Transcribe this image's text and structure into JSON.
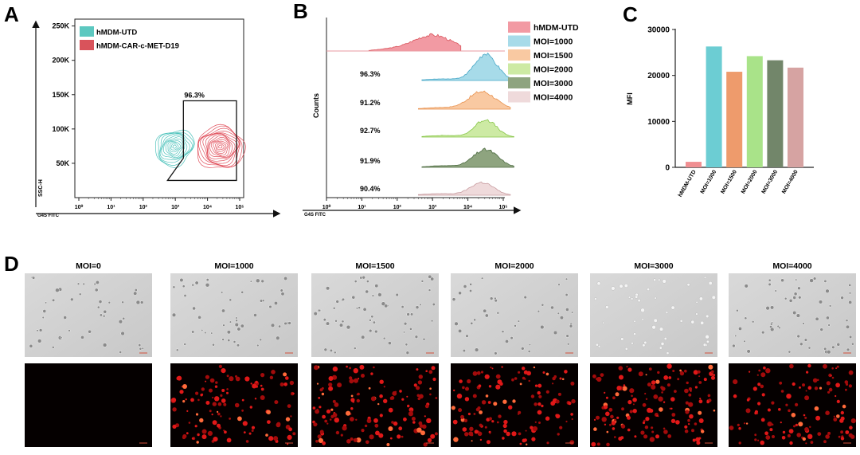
{
  "panel_letters": {
    "a": "A",
    "b": "B",
    "c": "C",
    "d": "D"
  },
  "chart_data": [
    {
      "type": "contour",
      "panel": "A",
      "xlabel": "G4S FITC",
      "ylabel": "SSC-H",
      "x_ticks": [
        "10⁰",
        "10¹",
        "10²",
        "10³",
        "10⁴",
        "10⁵"
      ],
      "y_ticks": [
        "50K",
        "100K",
        "150K",
        "200K",
        "250K"
      ],
      "y_tick_values": [
        50,
        100,
        150,
        200,
        250
      ],
      "ylim": [
        0,
        260
      ],
      "xlim": [
        0,
        5
      ],
      "legend": [
        {
          "label": "hMDM-UTD",
          "color": "#5cc8c0"
        },
        {
          "label": "hMDM-CAR-c-MET-D19",
          "color": "#d9535b"
        }
      ],
      "series": [
        {
          "name": "hMDM-UTD",
          "center_log": 3.0,
          "center_k": 72,
          "color": "#3cbdb5"
        },
        {
          "name": "hMDM-CAR-c-MET-D19",
          "center_log": 4.3,
          "center_k": 72,
          "color": "#de3f4d"
        }
      ],
      "gate": {
        "label": "96.3%",
        "x_log": [
          3.3,
          5.0
        ],
        "y_k": [
          25,
          141
        ]
      }
    },
    {
      "type": "histogram",
      "panel": "B",
      "xlabel": "G4S FITC",
      "ylabel": "Counts",
      "x_ticks": [
        "10⁰",
        "10¹",
        "10²",
        "10³",
        "10⁴",
        "10⁵"
      ],
      "series": [
        {
          "name": "hMDM-UTD",
          "color": "#f29aa3",
          "edge": "#d9535b",
          "peak_log": 3.0,
          "percent": ""
        },
        {
          "name": "MOI=1000",
          "color": "#a7dbe9",
          "edge": "#46a7c7",
          "peak_log": 4.5,
          "percent": "96.3%"
        },
        {
          "name": "MOI=1500",
          "color": "#f9c9a2",
          "edge": "#e8904c",
          "peak_log": 4.4,
          "percent": "91.2%"
        },
        {
          "name": "MOI=2000",
          "color": "#cdeaa4",
          "edge": "#86c545",
          "peak_log": 4.5,
          "percent": "92.7%"
        },
        {
          "name": "MOI=3000",
          "color": "#8ea47f",
          "edge": "#4c6b40",
          "peak_log": 4.5,
          "percent": "91.9%"
        },
        {
          "name": "MOI=4000",
          "color": "#efdadb",
          "edge": "#c89ca0",
          "peak_log": 4.4,
          "percent": "90.4%"
        }
      ]
    },
    {
      "type": "bar",
      "panel": "C",
      "ylabel": "MFI",
      "ylim": [
        0,
        30000
      ],
      "y_ticks": [
        0,
        10000,
        20000,
        30000
      ],
      "categories": [
        "hMDM-UTD",
        "MOI=1000",
        "MOI=1500",
        "MOI=2000",
        "MOI=3000",
        "MOI=4000"
      ],
      "values": [
        1200,
        26300,
        20800,
        24200,
        23300,
        21700
      ],
      "colors": [
        "#f08f92",
        "#6ccdd3",
        "#ee9b6c",
        "#a9e389",
        "#72866a",
        "#d6a3a2"
      ]
    }
  ],
  "panel_d": {
    "conditions": [
      "MOI=0",
      "MOI=1000",
      "MOI=1500",
      "MOI=2000",
      "MOI=3000",
      "MOI=4000"
    ],
    "fluorescence_density": [
      0,
      120,
      140,
      130,
      150,
      120
    ]
  }
}
